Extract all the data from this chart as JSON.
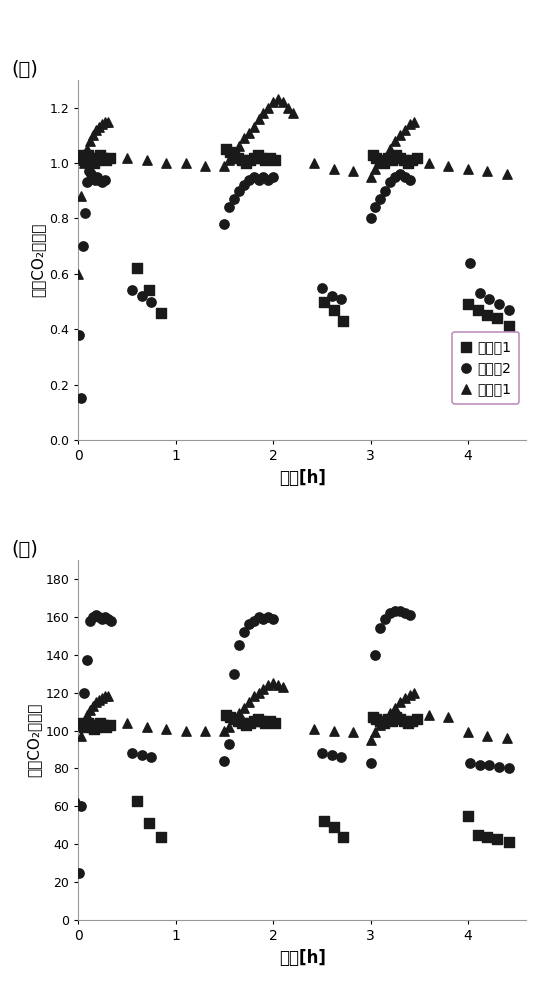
{
  "title1": "(一)",
  "title2": "(二)",
  "ylabel": "摸尔CO₂负载量",
  "xlabel": "时间[h]",
  "legend_labels": [
    "实施例1",
    "实施例2",
    "比较例1"
  ],
  "plot1": {
    "series1_x": [
      0.02,
      0.04,
      0.06,
      0.08,
      0.1,
      0.12,
      0.14,
      0.16,
      0.18,
      0.2,
      0.22,
      0.25,
      0.28,
      0.32,
      0.6,
      0.72,
      0.85,
      1.52,
      1.56,
      1.6,
      1.64,
      1.68,
      1.72,
      1.76,
      1.8,
      1.84,
      1.88,
      1.92,
      1.97,
      2.02,
      2.52,
      2.62,
      2.72,
      3.02,
      3.06,
      3.1,
      3.14,
      3.18,
      3.22,
      3.26,
      3.3,
      3.34,
      3.38,
      3.43,
      3.48,
      4.0,
      4.1,
      4.2,
      4.3,
      4.42
    ],
    "series1_y": [
      1.03,
      1.02,
      1.01,
      1.02,
      1.03,
      1.02,
      1.01,
      1.0,
      1.01,
      1.02,
      1.03,
      1.02,
      1.01,
      1.02,
      0.62,
      0.54,
      0.46,
      1.05,
      1.04,
      1.03,
      1.02,
      1.01,
      1.0,
      1.01,
      1.02,
      1.03,
      1.02,
      1.01,
      1.02,
      1.01,
      0.5,
      0.47,
      0.43,
      1.03,
      1.02,
      1.01,
      1.0,
      1.02,
      1.01,
      1.03,
      1.02,
      1.01,
      1.0,
      1.01,
      1.02,
      0.49,
      0.47,
      0.45,
      0.44,
      0.41
    ],
    "series2_x": [
      0.01,
      0.03,
      0.05,
      0.07,
      0.09,
      0.11,
      0.13,
      0.15,
      0.17,
      0.19,
      0.21,
      0.24,
      0.27,
      0.55,
      0.65,
      0.75,
      1.5,
      1.55,
      1.6,
      1.65,
      1.7,
      1.75,
      1.8,
      1.85,
      1.9,
      1.95,
      2.0,
      2.5,
      2.6,
      2.7,
      3.0,
      3.05,
      3.1,
      3.15,
      3.2,
      3.25,
      3.3,
      3.35,
      3.4,
      4.02,
      4.12,
      4.22,
      4.32,
      4.42
    ],
    "series2_y": [
      0.38,
      0.15,
      0.7,
      0.82,
      0.93,
      0.97,
      0.96,
      0.95,
      0.94,
      0.95,
      0.94,
      0.93,
      0.94,
      0.54,
      0.52,
      0.5,
      0.78,
      0.84,
      0.87,
      0.9,
      0.92,
      0.94,
      0.95,
      0.94,
      0.95,
      0.94,
      0.95,
      0.55,
      0.52,
      0.51,
      0.8,
      0.84,
      0.87,
      0.9,
      0.93,
      0.95,
      0.96,
      0.95,
      0.94,
      0.64,
      0.53,
      0.51,
      0.49,
      0.47
    ],
    "series3_x": [
      0.0,
      0.03,
      0.06,
      0.09,
      0.12,
      0.15,
      0.18,
      0.21,
      0.24,
      0.27,
      0.3,
      0.5,
      0.7,
      0.9,
      1.1,
      1.3,
      1.5,
      1.55,
      1.6,
      1.65,
      1.7,
      1.75,
      1.8,
      1.85,
      1.9,
      1.95,
      2.0,
      2.05,
      2.1,
      2.15,
      2.2,
      2.42,
      2.62,
      2.82,
      3.0,
      3.05,
      3.1,
      3.15,
      3.2,
      3.25,
      3.3,
      3.35,
      3.4,
      3.45,
      3.6,
      3.8,
      4.0,
      4.2,
      4.4
    ],
    "series3_y": [
      0.6,
      0.88,
      1.0,
      1.05,
      1.08,
      1.1,
      1.12,
      1.13,
      1.14,
      1.15,
      1.15,
      1.02,
      1.01,
      1.0,
      1.0,
      0.99,
      0.99,
      1.01,
      1.04,
      1.06,
      1.09,
      1.11,
      1.13,
      1.16,
      1.18,
      1.2,
      1.22,
      1.23,
      1.22,
      1.2,
      1.18,
      1.0,
      0.98,
      0.97,
      0.95,
      0.98,
      1.0,
      1.02,
      1.05,
      1.08,
      1.1,
      1.12,
      1.14,
      1.15,
      1.0,
      0.99,
      0.98,
      0.97,
      0.96
    ]
  },
  "plot2": {
    "series1_x": [
      0.02,
      0.04,
      0.06,
      0.08,
      0.1,
      0.12,
      0.14,
      0.16,
      0.18,
      0.2,
      0.22,
      0.25,
      0.28,
      0.32,
      0.6,
      0.72,
      0.85,
      1.52,
      1.56,
      1.6,
      1.64,
      1.68,
      1.72,
      1.76,
      1.8,
      1.84,
      1.88,
      1.92,
      1.97,
      2.02,
      2.52,
      2.62,
      2.72,
      3.02,
      3.06,
      3.1,
      3.14,
      3.18,
      3.22,
      3.26,
      3.3,
      3.34,
      3.38,
      3.43,
      3.48,
      4.0,
      4.1,
      4.2,
      4.3,
      4.42
    ],
    "series1_y": [
      104,
      103,
      102,
      103,
      104,
      103,
      102,
      101,
      102,
      103,
      104,
      103,
      102,
      103,
      63,
      51,
      44,
      108,
      107,
      106,
      105,
      104,
      103,
      104,
      105,
      106,
      105,
      104,
      105,
      104,
      52,
      49,
      44,
      107,
      106,
      105,
      104,
      106,
      105,
      107,
      106,
      105,
      104,
      105,
      106,
      55,
      45,
      44,
      43,
      41
    ],
    "series2_x": [
      0.01,
      0.03,
      0.06,
      0.09,
      0.12,
      0.15,
      0.18,
      0.21,
      0.24,
      0.27,
      0.3,
      0.33,
      0.55,
      0.65,
      0.75,
      1.5,
      1.55,
      1.6,
      1.65,
      1.7,
      1.75,
      1.8,
      1.85,
      1.9,
      1.95,
      2.0,
      2.5,
      2.6,
      2.7,
      3.0,
      3.05,
      3.1,
      3.15,
      3.2,
      3.25,
      3.3,
      3.35,
      3.4,
      4.02,
      4.12,
      4.22,
      4.32,
      4.42
    ],
    "series2_y": [
      25,
      60,
      120,
      137,
      158,
      160,
      161,
      160,
      159,
      160,
      159,
      158,
      88,
      87,
      86,
      84,
      93,
      130,
      145,
      152,
      156,
      158,
      160,
      159,
      160,
      159,
      88,
      87,
      86,
      83,
      140,
      154,
      159,
      162,
      163,
      163,
      162,
      161,
      83,
      82,
      82,
      81,
      80
    ],
    "series3_x": [
      0.0,
      0.03,
      0.06,
      0.09,
      0.12,
      0.15,
      0.18,
      0.21,
      0.24,
      0.27,
      0.3,
      0.5,
      0.7,
      0.9,
      1.1,
      1.3,
      1.5,
      1.55,
      1.6,
      1.65,
      1.7,
      1.75,
      1.8,
      1.85,
      1.9,
      1.95,
      2.0,
      2.05,
      2.1,
      2.42,
      2.62,
      2.82,
      3.0,
      3.05,
      3.1,
      3.15,
      3.2,
      3.25,
      3.3,
      3.35,
      3.4,
      3.45,
      3.6,
      3.8,
      4.0,
      4.2,
      4.4
    ],
    "series3_y": [
      62,
      97,
      103,
      108,
      111,
      113,
      115,
      116,
      117,
      118,
      118,
      104,
      102,
      101,
      100,
      100,
      100,
      102,
      106,
      109,
      112,
      115,
      118,
      120,
      122,
      124,
      125,
      124,
      123,
      101,
      100,
      99,
      95,
      99,
      103,
      106,
      109,
      112,
      115,
      117,
      119,
      120,
      108,
      107,
      99,
      97,
      96
    ]
  },
  "xlim": [
    0,
    4.6
  ],
  "ylim1": [
    0,
    1.3
  ],
  "ylim2": [
    0,
    190
  ],
  "yticks1": [
    0.0,
    0.2,
    0.4,
    0.6,
    0.8,
    1.0,
    1.2
  ],
  "yticks2": [
    0,
    20,
    40,
    60,
    80,
    100,
    120,
    140,
    160,
    180
  ],
  "xticks": [
    0,
    1,
    2,
    3,
    4
  ],
  "marker_color": "#1a1a1a",
  "bg_color": "#ffffff",
  "legend_edge_color": "#c090c0"
}
